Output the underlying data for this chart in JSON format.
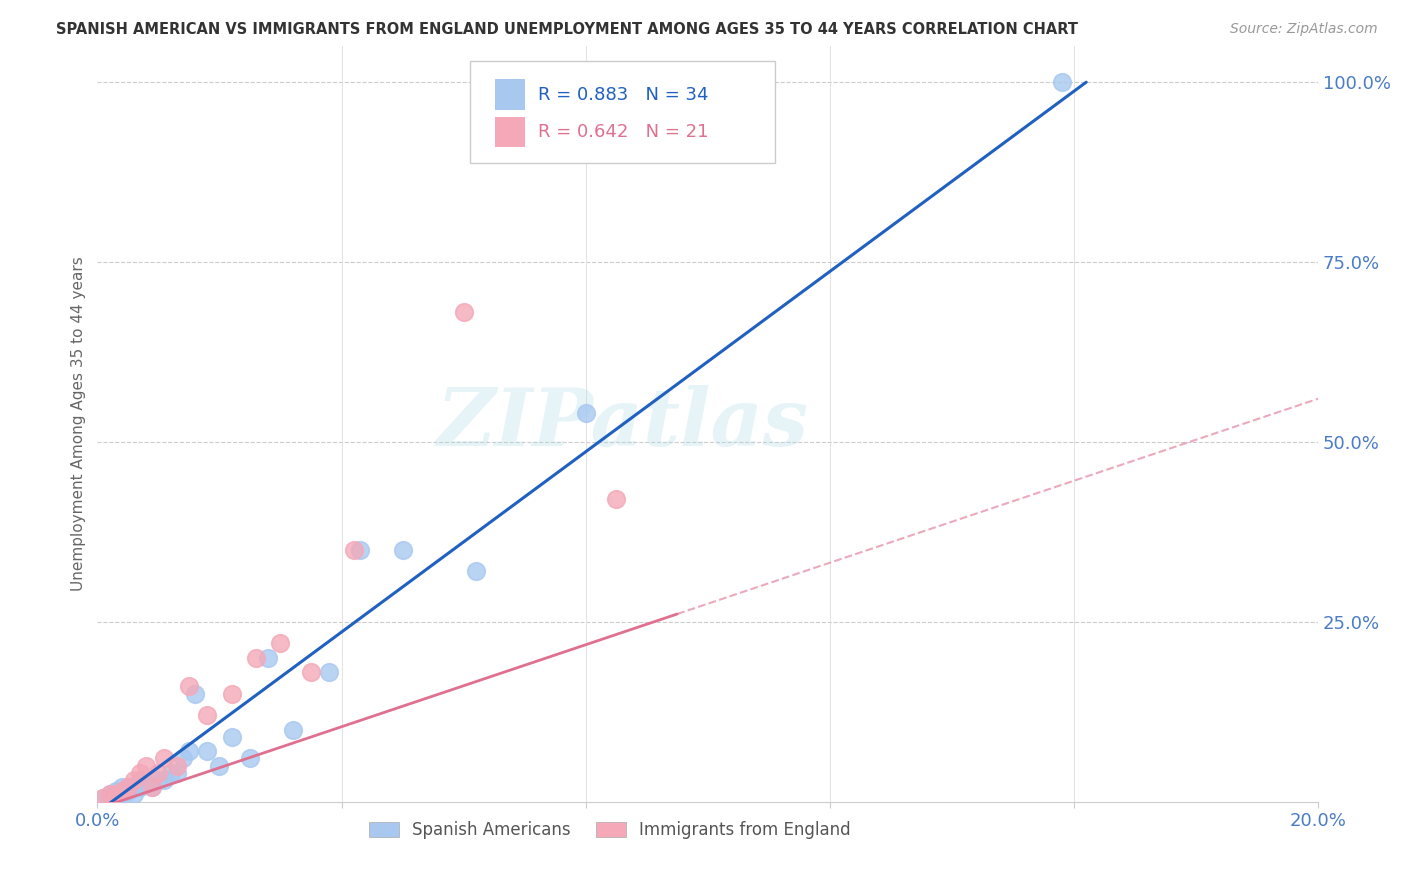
{
  "title": "SPANISH AMERICAN VS IMMIGRANTS FROM ENGLAND UNEMPLOYMENT AMONG AGES 35 TO 44 YEARS CORRELATION CHART",
  "source": "Source: ZipAtlas.com",
  "ylabel": "Unemployment Among Ages 35 to 44 years",
  "xlim": [
    0.0,
    0.2
  ],
  "ylim": [
    0.0,
    1.05
  ],
  "right_yticks": [
    0.0,
    0.25,
    0.5,
    0.75,
    1.0
  ],
  "right_yticklabels": [
    "",
    "25.0%",
    "50.0%",
    "75.0%",
    "100.0%"
  ],
  "xticks": [
    0.0,
    0.04,
    0.08,
    0.12,
    0.16,
    0.2
  ],
  "xticklabels": [
    "0.0%",
    "",
    "",
    "",
    "",
    "20.0%"
  ],
  "blue_r": 0.883,
  "blue_n": 34,
  "pink_r": 0.642,
  "pink_n": 21,
  "blue_color": "#a8c8f0",
  "pink_color": "#f4a8b8",
  "line_blue": "#2060c0",
  "line_pink": "#e07090",
  "watermark": "ZIPatlas",
  "blue_line_x0": 0.0,
  "blue_line_y0": -0.015,
  "blue_line_x1": 0.162,
  "blue_line_y1": 1.0,
  "pink_line_x0": 0.0,
  "pink_line_y0": -0.01,
  "pink_line_x1": 0.2,
  "pink_line_y1": 0.56,
  "blue_scatter_x": [
    0.001,
    0.002,
    0.002,
    0.003,
    0.003,
    0.004,
    0.004,
    0.005,
    0.005,
    0.006,
    0.006,
    0.007,
    0.007,
    0.008,
    0.009,
    0.01,
    0.011,
    0.012,
    0.013,
    0.014,
    0.015,
    0.016,
    0.018,
    0.02,
    0.022,
    0.025,
    0.028,
    0.032,
    0.038,
    0.043,
    0.05,
    0.062,
    0.08,
    0.158
  ],
  "blue_scatter_y": [
    0.005,
    0.01,
    0.005,
    0.01,
    0.015,
    0.01,
    0.02,
    0.015,
    0.02,
    0.01,
    0.02,
    0.02,
    0.03,
    0.025,
    0.02,
    0.03,
    0.03,
    0.04,
    0.04,
    0.06,
    0.07,
    0.15,
    0.07,
    0.05,
    0.09,
    0.06,
    0.2,
    0.1,
    0.18,
    0.35,
    0.35,
    0.32,
    0.54,
    1.0
  ],
  "pink_scatter_x": [
    0.001,
    0.002,
    0.003,
    0.004,
    0.005,
    0.006,
    0.007,
    0.008,
    0.009,
    0.01,
    0.011,
    0.013,
    0.015,
    0.018,
    0.022,
    0.026,
    0.03,
    0.035,
    0.042,
    0.06,
    0.085
  ],
  "pink_scatter_y": [
    0.005,
    0.01,
    0.01,
    0.015,
    0.02,
    0.03,
    0.04,
    0.05,
    0.02,
    0.04,
    0.06,
    0.05,
    0.16,
    0.12,
    0.15,
    0.2,
    0.22,
    0.18,
    0.35,
    0.68,
    0.42
  ]
}
